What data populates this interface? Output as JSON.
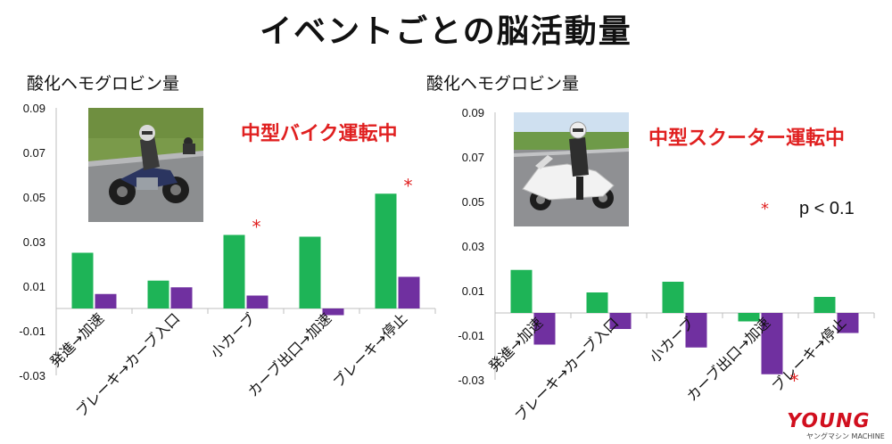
{
  "title": "イベントごとの脳活動量",
  "colors": {
    "green": "#1eb457",
    "purple": "#7030a0",
    "red": "#e02020",
    "axis": "#bfbfbf"
  },
  "logo": {
    "main": "YOUNG",
    "sub": "ヤングマシン MACHINE"
  },
  "chart_data": [
    {
      "type": "bar",
      "ylabel": "酸化ヘモグロビン量",
      "annotation": "中型バイク運転中",
      "categories": [
        "発進→加速",
        "ブレーキ→カーブ入口",
        "小カーブ",
        "カーブ出口→加速",
        "ブレーキ→停止"
      ],
      "series": [
        {
          "values": [
            0.025,
            0.0125,
            0.033,
            0.0322,
            0.0515
          ]
        },
        {
          "values": [
            0.0065,
            0.0095,
            0.0058,
            -0.003,
            0.0142
          ]
        }
      ],
      "yticks": [
        "0.09",
        "0.07",
        "0.05",
        "0.03",
        "0.01",
        "-0.01",
        "-0.03"
      ],
      "ylim": [
        -0.03,
        0.09
      ],
      "significance": [
        {
          "category": "小カーブ",
          "series": 0,
          "mark": "*"
        },
        {
          "category": "ブレーキ→停止",
          "series": 0,
          "mark": "*"
        }
      ]
    },
    {
      "type": "bar",
      "ylabel": "酸化ヘモグロビン量",
      "annotation": "中型スクーター運転中",
      "legend_note": {
        "mark": "*",
        "text": "p < 0.1"
      },
      "categories": [
        "発進→加速",
        "ブレーキ→カーブ入口",
        "小カーブ",
        "カーブ出口→加速",
        "ブレーキ→停止"
      ],
      "series": [
        {
          "values": [
            0.0193,
            0.0092,
            0.014,
            -0.0038,
            0.0072
          ]
        },
        {
          "values": [
            -0.0142,
            -0.0072,
            -0.0155,
            -0.0275,
            -0.009
          ]
        }
      ],
      "yticks": [
        "0.09",
        "0.07",
        "0.05",
        "0.03",
        "0.01",
        "-0.01",
        "-0.03"
      ],
      "ylim": [
        -0.03,
        0.09
      ],
      "significance": [
        {
          "category": "カーブ出口→加速",
          "series": 1,
          "mark": "*"
        }
      ]
    }
  ]
}
